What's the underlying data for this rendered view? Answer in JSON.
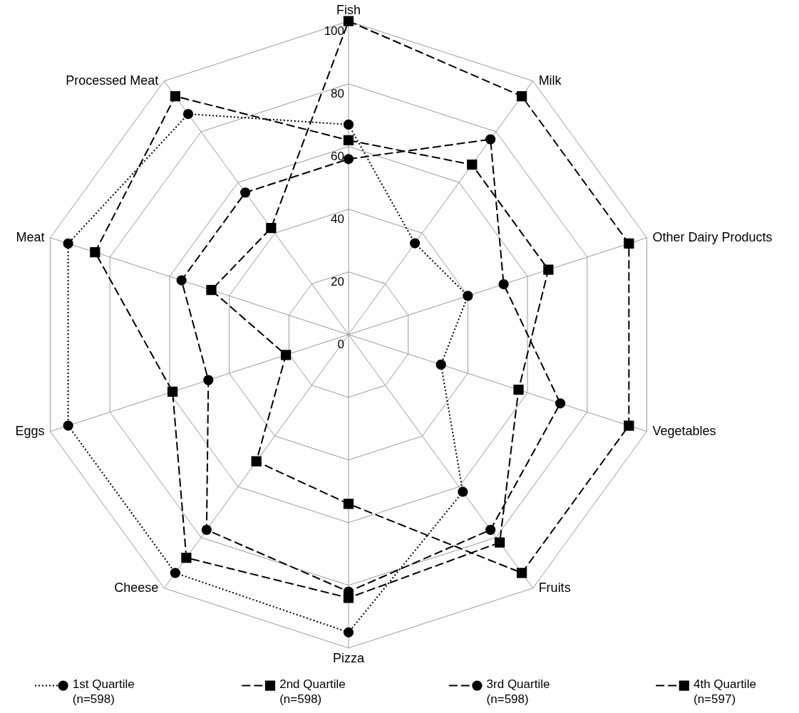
{
  "chart_data": {
    "type": "radar",
    "categories": [
      "Fish",
      "Milk",
      "Other Dairy Products",
      "Vegetables",
      "Fruits",
      "Pizza",
      "Cheese",
      "Eggs",
      "Meat",
      "Processed Meat"
    ],
    "ylim": [
      0,
      100
    ],
    "yticks": [
      0,
      20,
      40,
      60,
      80,
      100
    ],
    "grid": true,
    "legend": "bottom",
    "series": [
      {
        "name": "1st Quartile\n(n=598)",
        "color": "#000000",
        "marker": "circle",
        "line_style": "dotted",
        "values": [
          67,
          36,
          40,
          31,
          62,
          95,
          94,
          94,
          94,
          87
        ]
      },
      {
        "name": "2nd Quartile\n(n=598)",
        "color": "#000000",
        "marker": "square",
        "line_style": "dashed",
        "values": [
          62,
          67,
          67,
          57,
          82,
          84,
          88,
          59,
          85,
          94
        ]
      },
      {
        "name": "3rd Quartile\n(n=598)",
        "color": "#000000",
        "marker": "circle",
        "line_style": "dashed",
        "values": [
          56,
          77,
          52,
          71,
          77,
          82,
          77,
          47,
          56,
          56
        ]
      },
      {
        "name": "4th Quartile\n(n=597)",
        "color": "#000000",
        "marker": "square",
        "line_style": "dashed",
        "values": [
          100,
          94,
          94,
          94,
          94,
          54,
          50,
          21,
          46,
          42
        ]
      }
    ]
  }
}
